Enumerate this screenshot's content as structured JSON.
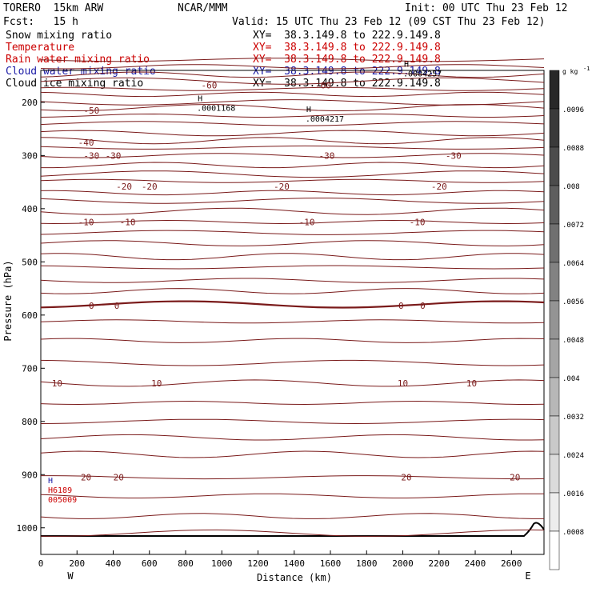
{
  "header": {
    "model": "TORERO  15km ARW",
    "center": "NCAR/MMM",
    "init": "Init: 00 UTC Thu 23 Feb 12",
    "fcst": "Fcst:   15 h",
    "valid": "Valid: 15 UTC Thu 23 Feb 12 (09 CST Thu 23 Feb 12)"
  },
  "fields": [
    {
      "name": "Snow mixing ratio",
      "xy": "XY=  38.3.149.8 to 222.9.149.8",
      "color": "#000000"
    },
    {
      "name": "Temperature",
      "xy": "XY=  38.3.149.8 to 222.9.149.8",
      "color": "#cc0000"
    },
    {
      "name": "Rain water mixing ratio",
      "xy": "XY=  38.3.149.8 to 222.9.149.8",
      "color": "#cc0000"
    },
    {
      "name": "Cloud water mixing ratio",
      "xy": "XY=  38.3.149.8 to 222.9.149.8",
      "color": "#1a1aa6"
    },
    {
      "name": "Cloud ice mixing ratio",
      "xy": "XY=  38.3.149.8 to 222.9.149.8",
      "color": "#000000"
    }
  ],
  "chart_data": {
    "type": "contour",
    "title": "",
    "xlabel": "Distance (km)",
    "ylabel": "Pressure (hPa)",
    "x_ticks": [
      0,
      200,
      400,
      600,
      800,
      1000,
      1200,
      1400,
      1600,
      1800,
      2000,
      2200,
      2400,
      2600
    ],
    "y_ticks": [
      200,
      300,
      400,
      500,
      600,
      700,
      800,
      900,
      1000
    ],
    "xlim": [
      0,
      2780
    ],
    "ylim": [
      1050,
      140
    ],
    "end_labels": {
      "left": "W",
      "right": "E"
    },
    "temperature_contours": [
      {
        "value": -60,
        "pressure": 168,
        "labels": [
          "-60",
          "-60"
        ]
      },
      {
        "value": -50,
        "pressure": 215,
        "labels": [
          "-50"
        ]
      },
      {
        "value": -40,
        "pressure": 275,
        "labels": [
          "-40"
        ]
      },
      {
        "value": -30,
        "pressure": 300,
        "labels": [
          "-30",
          "-30",
          "-30",
          "-30"
        ]
      },
      {
        "value": -20,
        "pressure": 358,
        "labels": [
          "-20",
          "-20",
          "-20",
          "-20"
        ]
      },
      {
        "value": -10,
        "pressure": 425,
        "labels": [
          "-10",
          "-10",
          "-10",
          "-10"
        ]
      },
      {
        "value": 0,
        "pressure": 582,
        "labels": [
          "0",
          "0",
          "0",
          "0"
        ]
      },
      {
        "value": 10,
        "pressure": 728,
        "labels": [
          "10",
          "10",
          "10",
          "10"
        ]
      },
      {
        "value": 20,
        "pressure": 905,
        "labels": [
          "20",
          "20",
          "20",
          "20"
        ]
      }
    ],
    "extrema_labels": [
      {
        "mark": "H",
        "value": ".0001168",
        "x_km": 880,
        "p": 210
      },
      {
        "mark": "H",
        "value": ".0004217",
        "x_km": 1480,
        "p": 230
      },
      {
        "mark": "H",
        "value": ".0004257",
        "x_km": 2020,
        "p": 145
      }
    ],
    "lower_left_labels": [
      {
        "text": "H",
        "color": "#1a1aa6"
      },
      {
        "text": "H6189",
        "color": "#cc0000"
      },
      {
        "text": "005009",
        "color": "#cc0000"
      }
    ],
    "colorbar": {
      "unit": "g kg",
      "unit_exponent": "-1",
      "ticks": [
        ".0096",
        ".0088",
        ".008",
        ".0072",
        ".0064",
        ".0056",
        ".0048",
        ".004",
        ".0032",
        ".0024",
        ".0016",
        ".0008"
      ]
    }
  }
}
